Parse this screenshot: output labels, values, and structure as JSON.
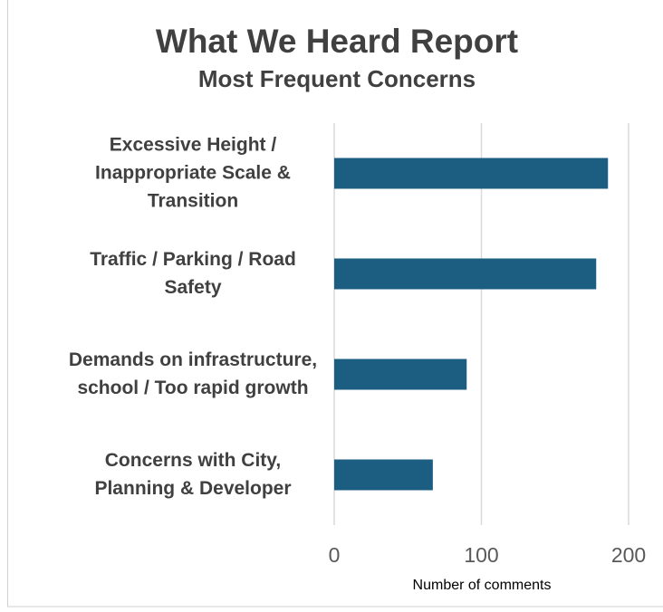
{
  "chart_data": {
    "type": "barh",
    "title": "What We Heard Report",
    "subtitle": "Most Frequent Concerns",
    "categories": [
      "Excessive Height /\nInappropriate Scale &\nTransition",
      "Traffic / Parking / Road\nSafety",
      "Demands on infrastructure,\nschool / Too rapid growth",
      "Concerns with City,\nPlanning & Developer"
    ],
    "values": [
      186,
      178,
      90,
      67
    ],
    "color": "#1b5e82",
    "xlabel": "Number of comments",
    "xlim": [
      0,
      200
    ],
    "xticks": [
      0,
      100,
      200
    ],
    "grid": true
  }
}
